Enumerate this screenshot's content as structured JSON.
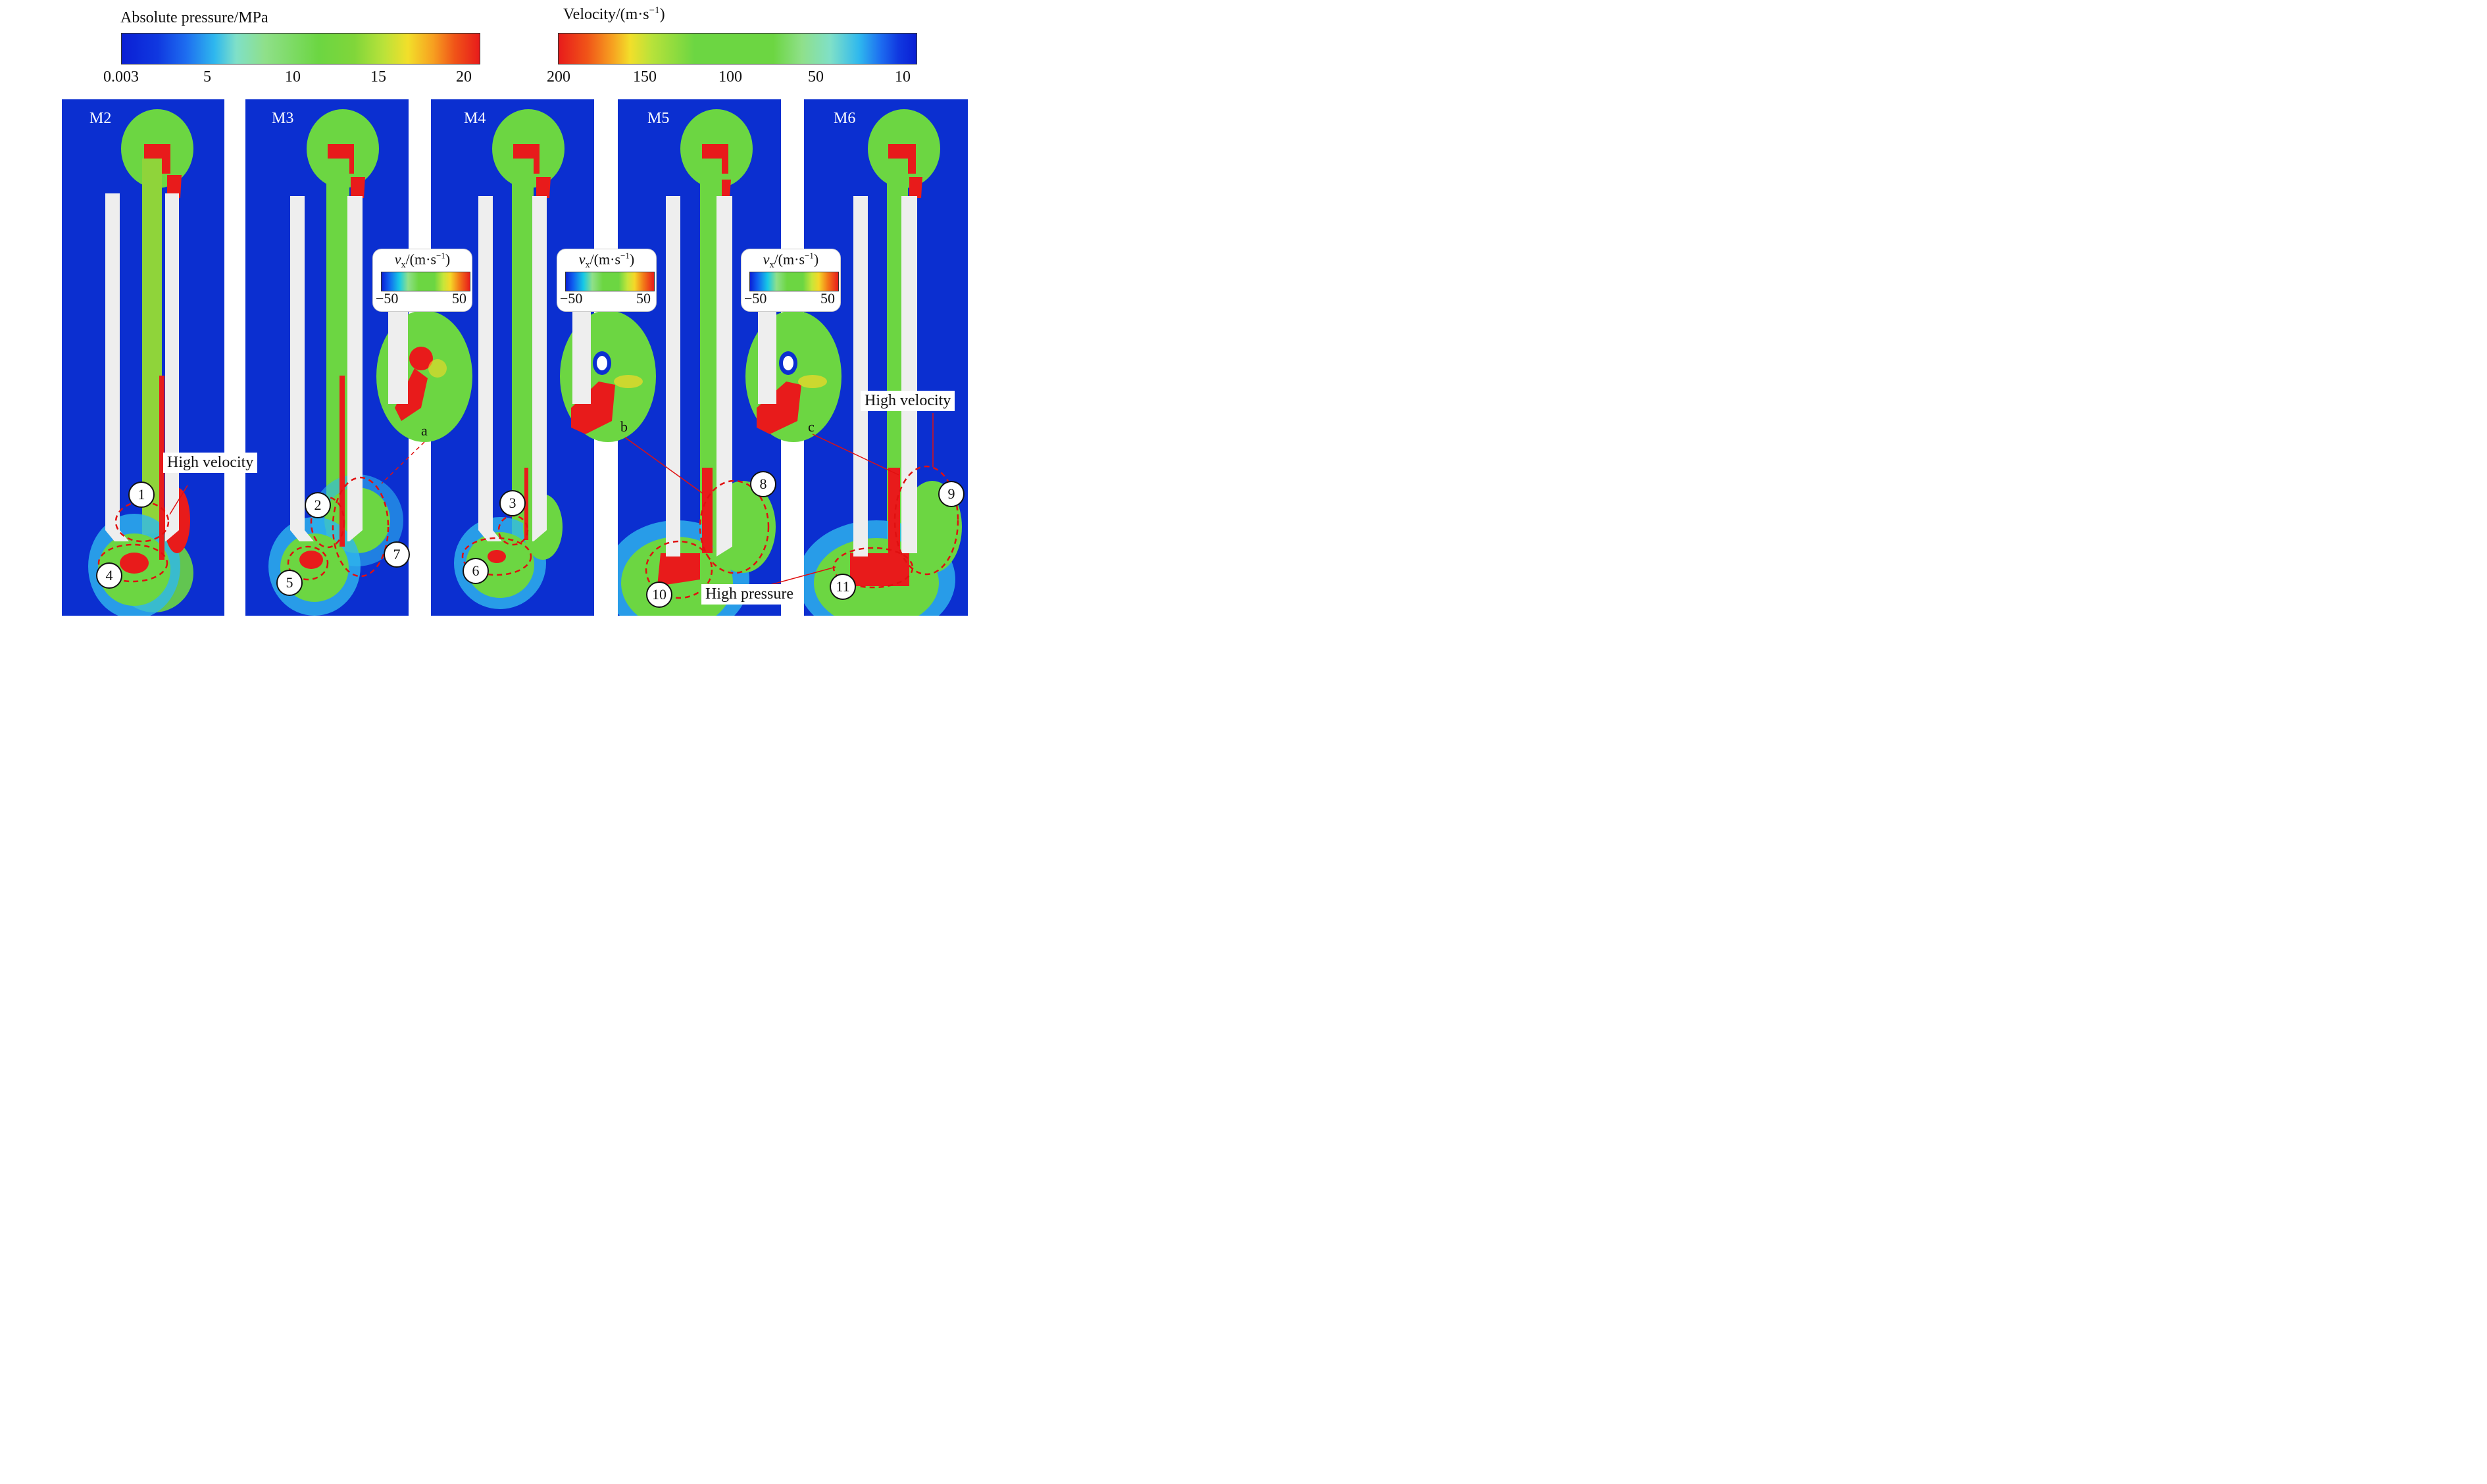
{
  "pressure_colorbar": {
    "title": "Absolute pressure/MPa",
    "ticks": [
      "0.003",
      "5",
      "10",
      "15",
      "20"
    ]
  },
  "velocity_colorbar": {
    "title_main": "Velocity/(m·s",
    "title_sup": "−1",
    "title_end": ")",
    "ticks": [
      "200",
      "150",
      "100",
      "50",
      "10"
    ]
  },
  "panels": [
    "M2",
    "M3",
    "M4",
    "M5",
    "M6"
  ],
  "inset_colorbar": {
    "var": "v",
    "sub": "x",
    "unit_main": "/(m·s",
    "unit_sup": "−1",
    "unit_end": ")",
    "min": "−50",
    "max": "50"
  },
  "inset_labels": [
    "a",
    "b",
    "c"
  ],
  "region_numbers": [
    "1",
    "2",
    "3",
    "4",
    "5",
    "6",
    "7",
    "8",
    "9",
    "10",
    "11"
  ],
  "annotations": {
    "high_velocity": "High velocity",
    "high_pressure": "High pressure"
  },
  "colors": {
    "background_blue": "#0b2fd0",
    "high_red": "#e81b1b",
    "mid_green": "#6cd642",
    "dashed_marker": "#e01010"
  }
}
